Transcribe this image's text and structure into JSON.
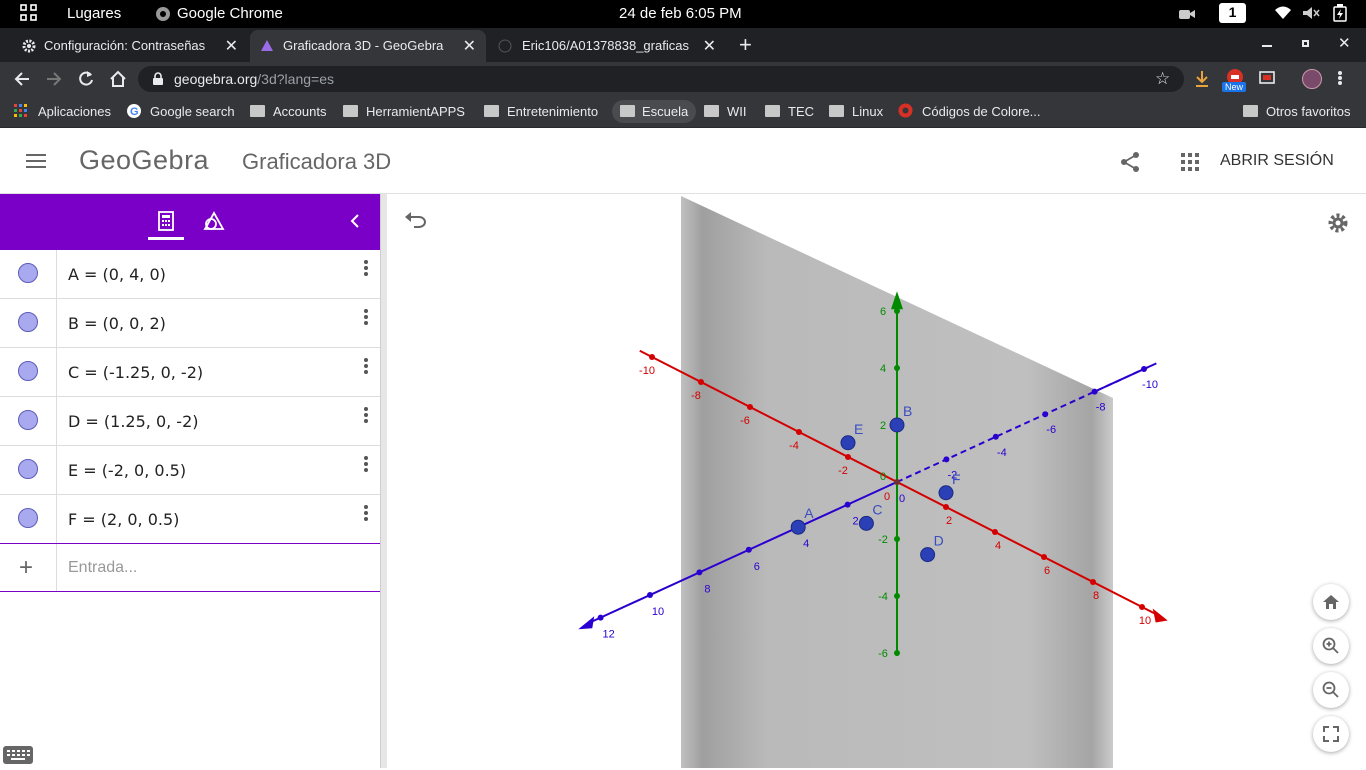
{
  "system_bar": {
    "activities": "Lugares",
    "app_name": "Google Chrome",
    "clock": "24 de feb  6:05 PM",
    "workspace": "1"
  },
  "tabs": [
    {
      "title": "Configuración: Contraseñas",
      "icon": "gear-icon"
    },
    {
      "title": "Graficadora 3D - GeoGebra",
      "icon": "geogebra-icon"
    },
    {
      "title": "Eric106/A01378838_graficas",
      "icon": "github-icon"
    }
  ],
  "address": {
    "host": "geogebra.org",
    "path": "/3d?lang=es"
  },
  "extension_badge": "New",
  "bookmarks": {
    "apps": "Aplicaciones",
    "items": [
      "Google search",
      "Accounts",
      "HerramientAPPS",
      "Entretenimiento",
      "Escuela",
      "WII",
      "TEC",
      "Linux",
      "Códigos de Colore..."
    ],
    "other": "Otros favoritos"
  },
  "geogebra": {
    "logo": "GeoGebra",
    "app_title": "Graficadora 3D",
    "sign_in": "ABRIR SESIÓN",
    "brand_color": "#7a00c8",
    "input_placeholder": "Entrada...",
    "objects": [
      {
        "expr": "A = (0, 4, 0)"
      },
      {
        "expr": "B = (0, 0, 2)"
      },
      {
        "expr": "C = (-1.25, 0, -2)"
      },
      {
        "expr": "D = (1.25, 0, -2)"
      },
      {
        "expr": "E = (-2, 0, 0.5)"
      },
      {
        "expr": "F = (2, 0, 0.5)"
      }
    ]
  },
  "graph": {
    "axis_colors": {
      "x": "#d40000",
      "y": "#2a00d0",
      "z": "#008a00"
    },
    "x_ticks": [
      "-10",
      "-8",
      "-6",
      "-4",
      "-2",
      "2",
      "4",
      "6",
      "8",
      "10"
    ],
    "y_ticks_front": [
      "12",
      "10",
      "8",
      "6",
      "4",
      "2"
    ],
    "y_ticks_back": [
      "-2",
      "-4",
      "-6",
      "-8",
      "-10"
    ],
    "z_ticks": [
      "6",
      "4",
      "2",
      "-2",
      "-4",
      "-6"
    ],
    "origin_labels": [
      "0",
      "0",
      "0"
    ],
    "point_labels": [
      "A",
      "B",
      "C",
      "D",
      "E",
      "F"
    ]
  }
}
